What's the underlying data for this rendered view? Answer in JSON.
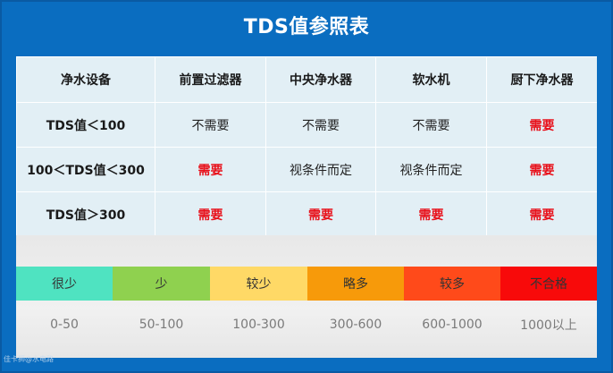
{
  "title": "TDS值参照表",
  "colors": {
    "background": "#0a6dc0",
    "table_bg": "#e2eff5",
    "required_text": "#e8101a"
  },
  "table": {
    "headers": [
      "净水设备",
      "前置过滤器",
      "中央净水器",
      "软水机",
      "厨下净水器"
    ],
    "rows": [
      {
        "label": "TDS值＜100",
        "cells": [
          "不需要",
          "不需要",
          "不需要",
          "需要"
        ]
      },
      {
        "label": "100＜TDS值＜300",
        "cells": [
          "需要",
          "视条件而定",
          "视条件而定",
          "需要"
        ]
      },
      {
        "label": "TDS值＞300",
        "cells": [
          "需要",
          "需要",
          "需要",
          "需要"
        ]
      }
    ]
  },
  "scale": {
    "levels": [
      {
        "label": "很少",
        "color": "#4fe3c1"
      },
      {
        "label": "少",
        "color": "#8fd14f"
      },
      {
        "label": "较少",
        "color": "#ffd966"
      },
      {
        "label": "略多",
        "color": "#f79a0a"
      },
      {
        "label": "较多",
        "color": "#ff4a1a"
      },
      {
        "label": "不合格",
        "color": "#f80a0a"
      }
    ],
    "ranges": [
      "0-50",
      "50-100",
      "100-300",
      "300-600",
      "600-1000",
      "1000以上"
    ]
  },
  "watermark": "佳卡狮@水电路"
}
